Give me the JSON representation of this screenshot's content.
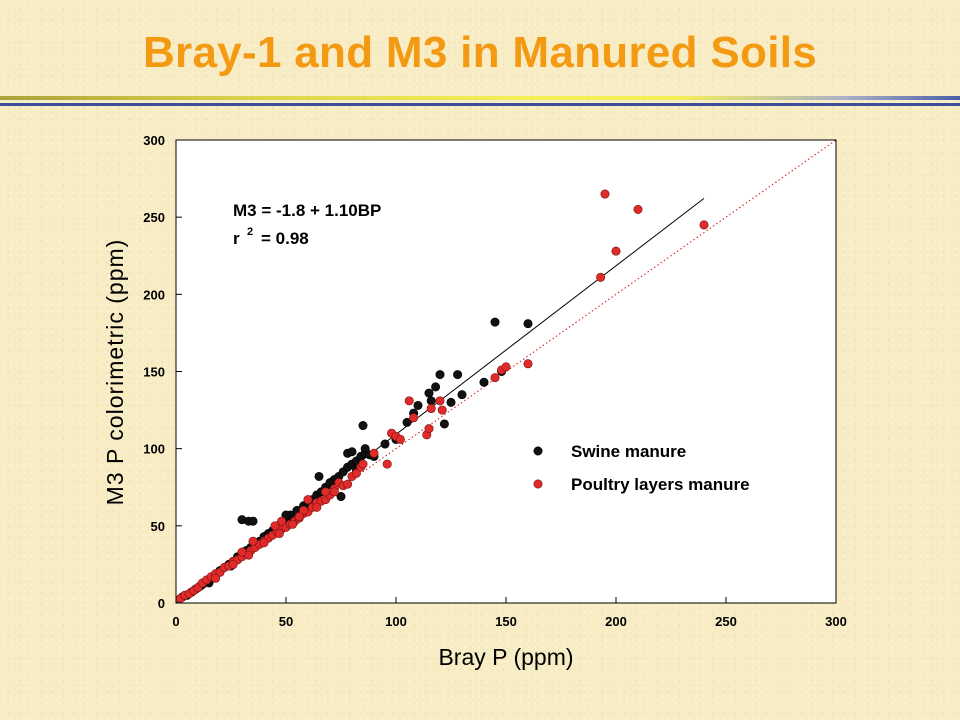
{
  "slide": {
    "title": "Bray-1 and M3 in Manured Soils",
    "title_color": "#f39a12"
  },
  "chart_data": {
    "type": "scatter",
    "title": "",
    "xlabel": "Bray P (ppm)",
    "ylabel": "M3 P colorimetric (ppm)",
    "xlim": [
      0,
      300
    ],
    "ylim": [
      0,
      300
    ],
    "x_ticks": [
      0,
      50,
      100,
      150,
      200,
      250,
      300
    ],
    "y_ticks": [
      0,
      50,
      100,
      150,
      200,
      250,
      300
    ],
    "grid": false,
    "legend_position": "right-middle",
    "annotation": {
      "equation": "M3 = -1.8 + 1.10BP",
      "r2_prefix": "r",
      "r2_superscript": "2",
      "r2_value": "= 0.98"
    },
    "regression_line": {
      "intercept": -1.8,
      "slope": 1.1,
      "x_range": [
        0,
        240
      ],
      "color": "#000000",
      "style": "solid"
    },
    "one_to_one_line": {
      "x_range": [
        0,
        300
      ],
      "color": "#d42a2a",
      "style": "dotted"
    },
    "series": [
      {
        "name": "Swine manure",
        "color": "#111111",
        "points": [
          [
            3,
            4
          ],
          [
            5,
            5
          ],
          [
            7,
            7
          ],
          [
            9,
            9
          ],
          [
            11,
            11
          ],
          [
            12,
            12
          ],
          [
            14,
            14
          ],
          [
            16,
            16
          ],
          [
            18,
            18
          ],
          [
            20,
            21
          ],
          [
            22,
            23
          ],
          [
            24,
            25
          ],
          [
            26,
            27
          ],
          [
            28,
            30
          ],
          [
            30,
            32
          ],
          [
            32,
            34
          ],
          [
            34,
            36
          ],
          [
            36,
            38
          ],
          [
            38,
            40
          ],
          [
            40,
            43
          ],
          [
            42,
            45
          ],
          [
            44,
            47
          ],
          [
            46,
            50
          ],
          [
            48,
            52
          ],
          [
            50,
            55
          ],
          [
            52,
            57
          ],
          [
            55,
            60
          ],
          [
            58,
            63
          ],
          [
            60,
            65
          ],
          [
            62,
            67
          ],
          [
            64,
            70
          ],
          [
            66,
            72
          ],
          [
            68,
            75
          ],
          [
            70,
            77
          ],
          [
            72,
            80
          ],
          [
            74,
            82
          ],
          [
            76,
            85
          ],
          [
            78,
            88
          ],
          [
            80,
            90
          ],
          [
            82,
            92
          ],
          [
            84,
            95
          ],
          [
            86,
            97
          ],
          [
            88,
            96
          ],
          [
            30,
            54
          ],
          [
            33,
            53
          ],
          [
            35,
            53
          ],
          [
            45,
            48
          ],
          [
            50,
            57
          ],
          [
            55,
            59
          ],
          [
            60,
            62
          ],
          [
            65,
            82
          ],
          [
            70,
            78
          ],
          [
            75,
            69
          ],
          [
            78,
            97
          ],
          [
            80,
            98
          ],
          [
            82,
            86
          ],
          [
            85,
            115
          ],
          [
            86,
            100
          ],
          [
            90,
            95
          ],
          [
            95,
            103
          ],
          [
            100,
            106
          ],
          [
            105,
            117
          ],
          [
            108,
            123
          ],
          [
            110,
            128
          ],
          [
            115,
            136
          ],
          [
            116,
            131
          ],
          [
            118,
            140
          ],
          [
            120,
            148
          ],
          [
            122,
            116
          ],
          [
            125,
            130
          ],
          [
            128,
            148
          ],
          [
            130,
            135
          ],
          [
            140,
            143
          ],
          [
            145,
            182
          ],
          [
            148,
            150
          ],
          [
            160,
            181
          ],
          [
            20,
            20
          ],
          [
            25,
            24
          ],
          [
            15,
            13
          ],
          [
            10,
            10
          ]
        ]
      },
      {
        "name": "Poultry layers manure",
        "color": "#e12a2a",
        "points": [
          [
            2,
            3
          ],
          [
            4,
            5
          ],
          [
            6,
            6
          ],
          [
            8,
            8
          ],
          [
            10,
            10
          ],
          [
            12,
            13
          ],
          [
            14,
            15
          ],
          [
            16,
            17
          ],
          [
            18,
            19
          ],
          [
            20,
            20
          ],
          [
            22,
            23
          ],
          [
            24,
            24
          ],
          [
            26,
            27
          ],
          [
            28,
            28
          ],
          [
            30,
            30
          ],
          [
            32,
            32
          ],
          [
            34,
            34
          ],
          [
            36,
            36
          ],
          [
            38,
            38
          ],
          [
            40,
            40
          ],
          [
            42,
            42
          ],
          [
            44,
            44
          ],
          [
            46,
            46
          ],
          [
            48,
            48
          ],
          [
            50,
            49
          ],
          [
            52,
            51
          ],
          [
            54,
            53
          ],
          [
            56,
            55
          ],
          [
            58,
            58
          ],
          [
            60,
            59
          ],
          [
            62,
            62
          ],
          [
            64,
            65
          ],
          [
            66,
            66
          ],
          [
            68,
            67
          ],
          [
            70,
            70
          ],
          [
            72,
            74
          ],
          [
            74,
            78
          ],
          [
            76,
            76
          ],
          [
            78,
            77
          ],
          [
            80,
            82
          ],
          [
            82,
            84
          ],
          [
            84,
            88
          ],
          [
            85,
            90
          ],
          [
            90,
            97
          ],
          [
            96,
            90
          ],
          [
            98,
            110
          ],
          [
            100,
            108
          ],
          [
            102,
            106
          ],
          [
            106,
            131
          ],
          [
            108,
            120
          ],
          [
            114,
            109
          ],
          [
            115,
            113
          ],
          [
            116,
            126
          ],
          [
            120,
            131
          ],
          [
            121,
            125
          ],
          [
            145,
            146
          ],
          [
            148,
            151
          ],
          [
            150,
            153
          ],
          [
            160,
            155
          ],
          [
            193,
            211
          ],
          [
            195,
            265
          ],
          [
            200,
            228
          ],
          [
            210,
            255
          ],
          [
            240,
            245
          ],
          [
            18,
            16
          ],
          [
            26,
            25
          ],
          [
            33,
            31
          ],
          [
            40,
            39
          ],
          [
            47,
            45
          ],
          [
            53,
            51
          ],
          [
            58,
            60
          ],
          [
            64,
            62
          ],
          [
            68,
            72
          ],
          [
            72,
            72
          ],
          [
            48,
            53
          ],
          [
            56,
            56
          ],
          [
            60,
            67
          ],
          [
            35,
            40
          ],
          [
            30,
            33
          ],
          [
            45,
            50
          ]
        ]
      }
    ]
  }
}
